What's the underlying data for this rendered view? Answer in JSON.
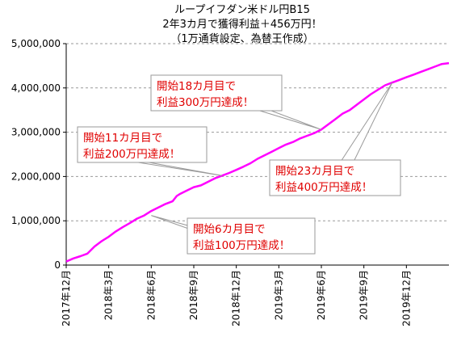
{
  "chart_data": {
    "type": "line",
    "title_lines": [
      "ループイフダン米ドル円B15",
      "2年3カ月で獲得利益＋456万円！",
      "（1万通貨設定、為替王作成）"
    ],
    "xlabel": "",
    "ylabel": "",
    "ylim": [
      0,
      5000000
    ],
    "y_ticks": [
      {
        "value": 0,
        "label": "0"
      },
      {
        "value": 1000000,
        "label": "1,000,000"
      },
      {
        "value": 2000000,
        "label": "2,000,000"
      },
      {
        "value": 3000000,
        "label": "3,000,000"
      },
      {
        "value": 4000000,
        "label": "4,000,000"
      },
      {
        "value": 5000000,
        "label": "5,000,000"
      }
    ],
    "x_range": [
      0,
      27
    ],
    "x_ticks": [
      {
        "value": 0,
        "label": "2017年12月"
      },
      {
        "value": 3,
        "label": "2018年3月"
      },
      {
        "value": 6,
        "label": "2018年6月"
      },
      {
        "value": 9,
        "label": "2018年9月"
      },
      {
        "value": 12,
        "label": "2018年12月"
      },
      {
        "value": 15,
        "label": "2019年3月"
      },
      {
        "value": 18,
        "label": "2019年6月"
      },
      {
        "value": 21,
        "label": "2019年9月"
      },
      {
        "value": 24,
        "label": "2019年12月"
      }
    ],
    "grid": true,
    "line_color": "#ff00ff",
    "series": [
      {
        "x": [
          0,
          0.5,
          1,
          1.5,
          2,
          2.5,
          3,
          3.5,
          4,
          4.5,
          5,
          5.5,
          6,
          6.5,
          7,
          7.5,
          7.8,
          8,
          8.5,
          9,
          9.5,
          10,
          10.5,
          11,
          11.5,
          12,
          12.5,
          13,
          13.5,
          14,
          14.5,
          15,
          15.5,
          16,
          16.5,
          17,
          17.5,
          18,
          18.5,
          19,
          19.5,
          20,
          20.5,
          21,
          21.5,
          22,
          22.5,
          23,
          23.5,
          24,
          24.5,
          25,
          25.5,
          26,
          26.5,
          27
        ],
        "y": [
          80000,
          150000,
          200000,
          260000,
          420000,
          540000,
          640000,
          760000,
          860000,
          950000,
          1050000,
          1120000,
          1220000,
          1300000,
          1380000,
          1440000,
          1560000,
          1600000,
          1680000,
          1760000,
          1800000,
          1880000,
          1960000,
          2020000,
          2080000,
          2150000,
          2220000,
          2300000,
          2400000,
          2480000,
          2560000,
          2640000,
          2720000,
          2780000,
          2860000,
          2920000,
          2980000,
          3060000,
          3180000,
          3300000,
          3420000,
          3500000,
          3620000,
          3740000,
          3860000,
          3960000,
          4060000,
          4120000,
          4180000,
          4240000,
          4300000,
          4360000,
          4420000,
          4480000,
          4540000,
          4560000
        ]
      }
    ],
    "annotations": [
      {
        "lines": [
          "開始6カ月目で",
          "利益100万円達成！"
        ],
        "point": [
          6,
          1120000
        ]
      },
      {
        "lines": [
          "開始11カ月目で",
          "利益200万円達成！"
        ],
        "point": [
          11,
          2020000
        ]
      },
      {
        "lines": [
          "開始18カ月目で",
          "利益300万円達成！"
        ],
        "point": [
          18,
          3060000
        ]
      },
      {
        "lines": [
          "開始23カ月目で",
          "利益400万円達成！"
        ],
        "point": [
          23,
          4120000
        ]
      }
    ]
  }
}
